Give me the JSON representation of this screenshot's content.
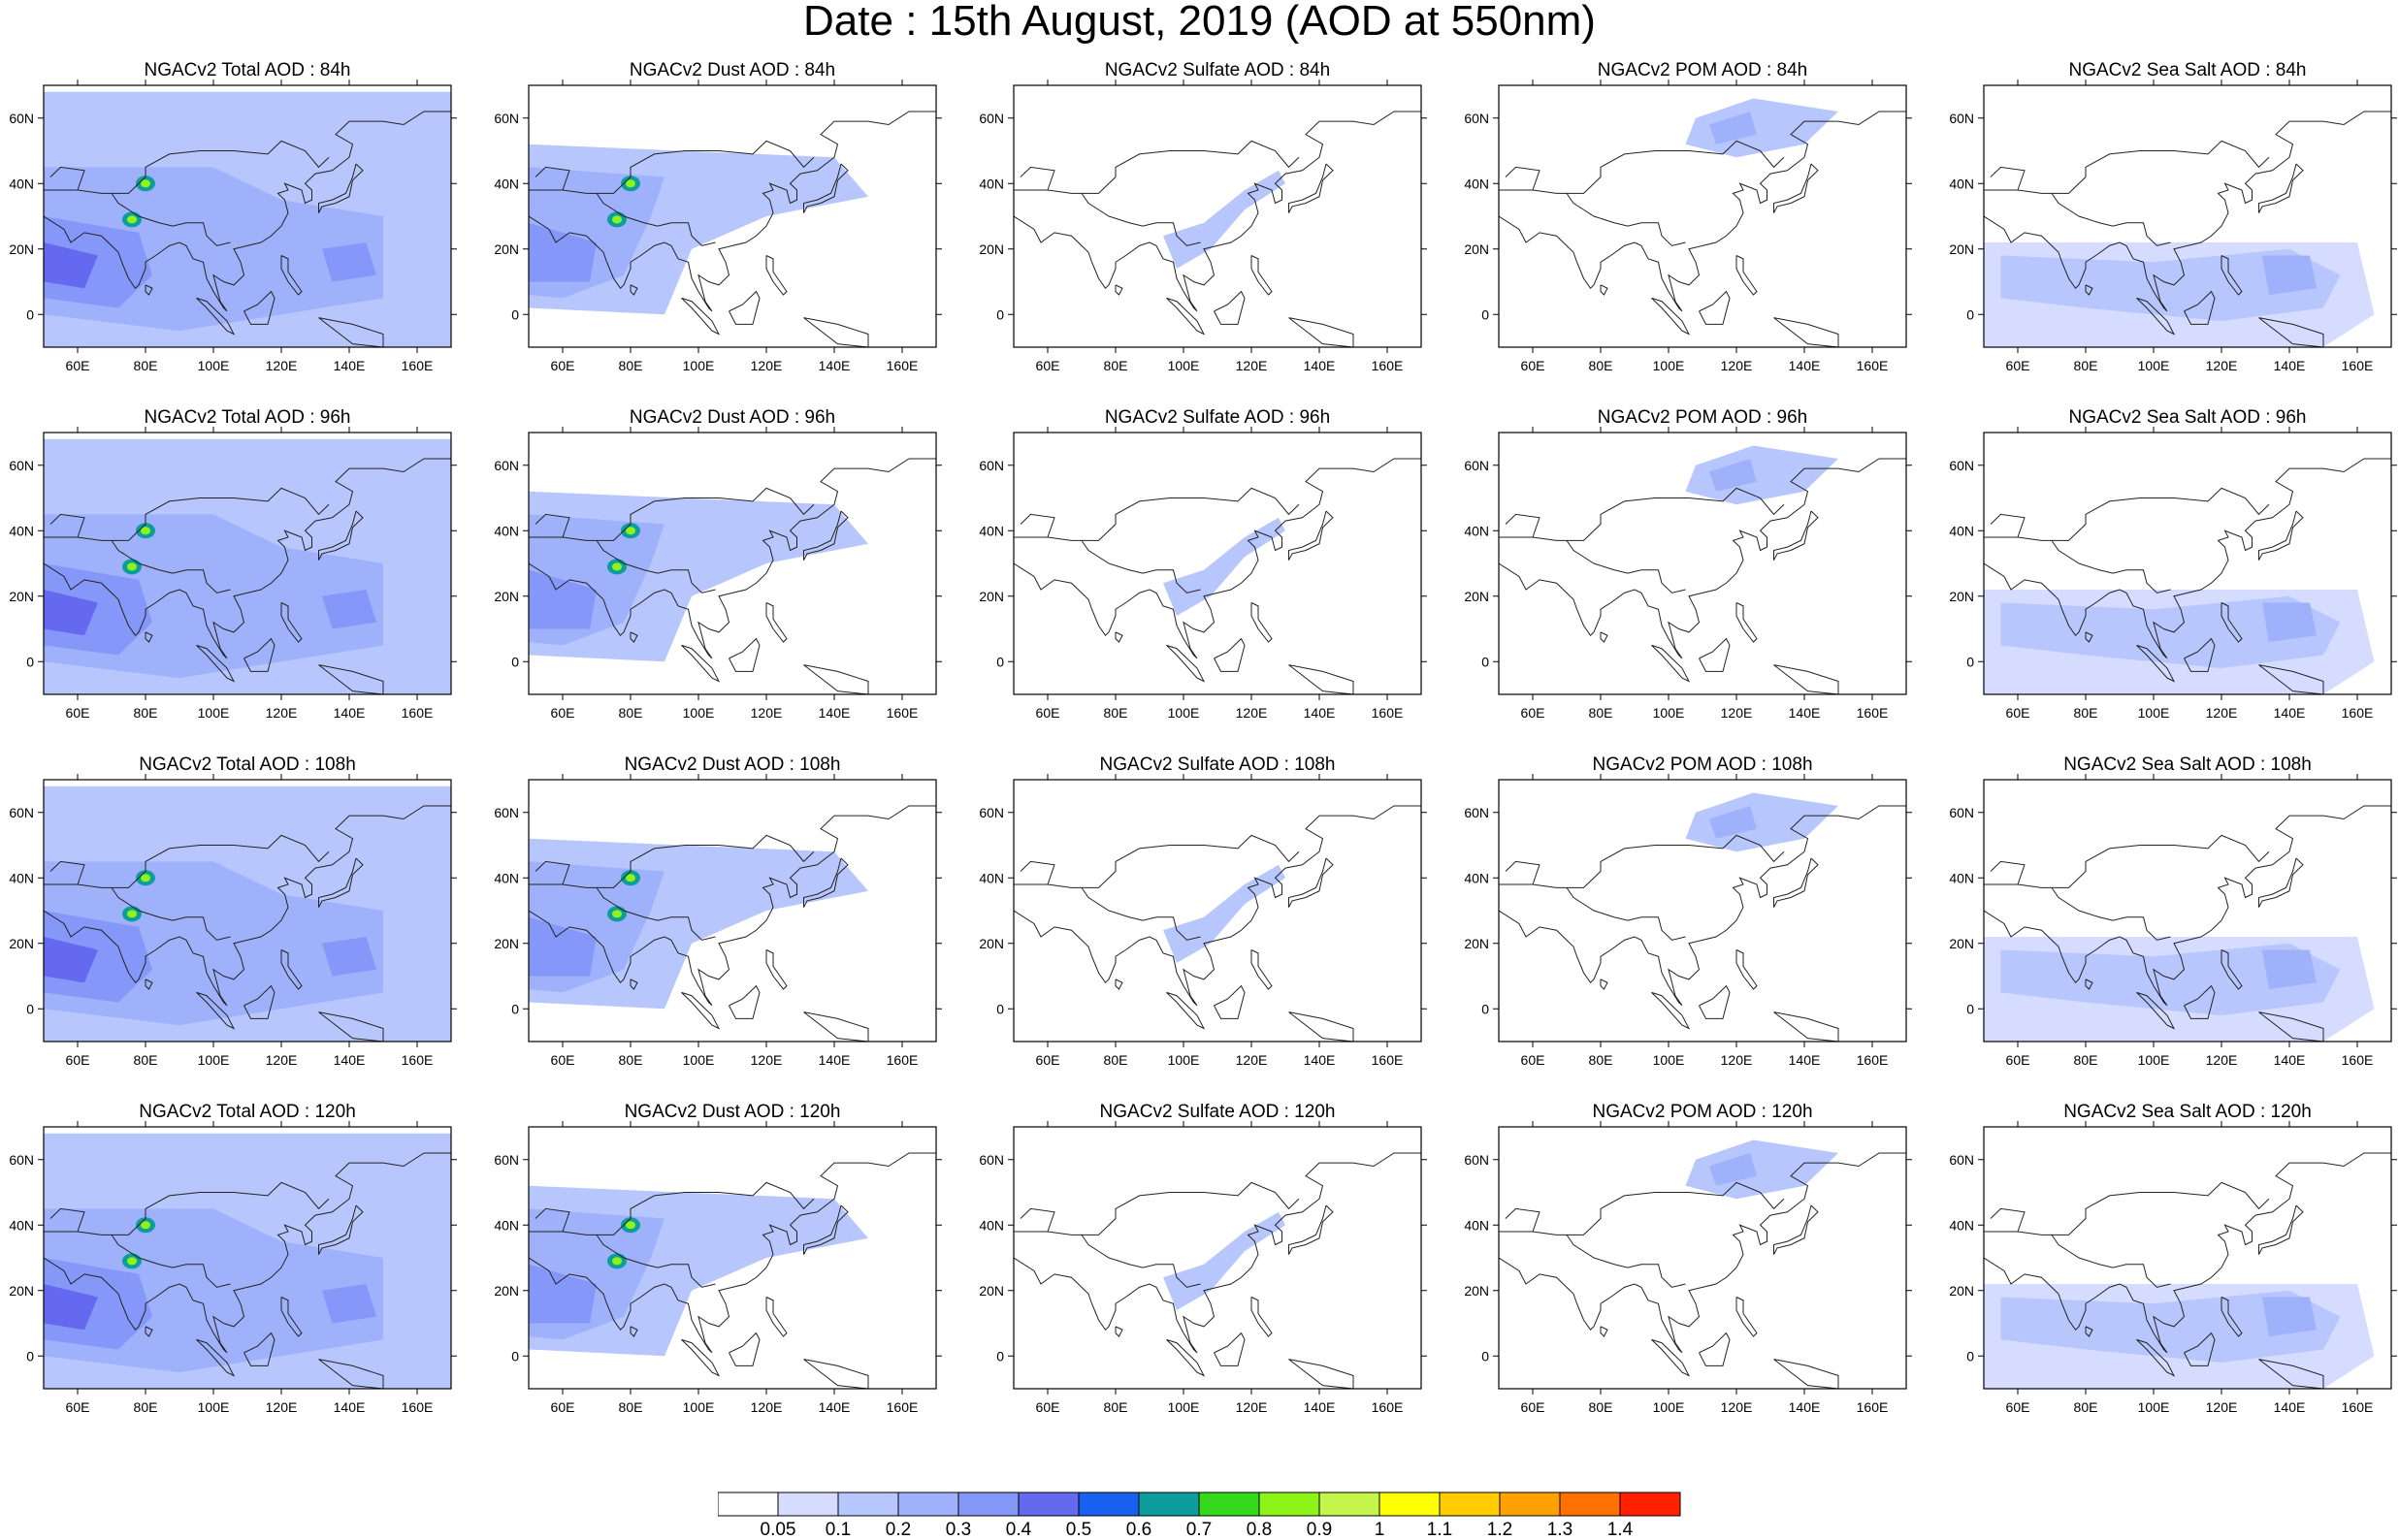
{
  "title": "Date : 15th August, 2019 (AOD at 550nm)",
  "axes": {
    "lat_ticks": [
      "60N",
      "40N",
      "20N",
      "0"
    ],
    "lon_ticks": [
      "60E",
      "80E",
      "100E",
      "120E",
      "140E",
      "160E"
    ],
    "lat_range": [
      -10,
      70
    ],
    "lon_range": [
      50,
      170
    ]
  },
  "colorbar": {
    "labels": [
      "0.05",
      "0.1",
      "0.2",
      "0.3",
      "0.4",
      "0.5",
      "0.6",
      "0.7",
      "0.8",
      "0.9",
      "1",
      "1.1",
      "1.2",
      "1.3",
      "1.4"
    ],
    "colors": [
      "#ffffff",
      "#d6dcff",
      "#b7c6fc",
      "#9fb1fb",
      "#8597f8",
      "#6569f0",
      "#1860f0",
      "#0e9d9d",
      "#35d91b",
      "#8ef418",
      "#c5f54a",
      "#ffff00",
      "#ffcc00",
      "#ffa200",
      "#ff7000",
      "#ff2000"
    ]
  },
  "panels": [
    {
      "title": "NGACv2 Total AOD : 84h",
      "species": "total"
    },
    {
      "title": "NGACv2 Dust AOD : 84h",
      "species": "dust"
    },
    {
      "title": "NGACv2 Sulfate AOD : 84h",
      "species": "sulfate"
    },
    {
      "title": "NGACv2 POM AOD : 84h",
      "species": "pom"
    },
    {
      "title": "NGACv2 Sea Salt AOD : 84h",
      "species": "seasalt"
    },
    {
      "title": "NGACv2 Total AOD : 96h",
      "species": "total"
    },
    {
      "title": "NGACv2 Dust AOD : 96h",
      "species": "dust"
    },
    {
      "title": "NGACv2 Sulfate AOD : 96h",
      "species": "sulfate"
    },
    {
      "title": "NGACv2 POM AOD : 96h",
      "species": "pom"
    },
    {
      "title": "NGACv2 Sea Salt AOD : 96h",
      "species": "seasalt"
    },
    {
      "title": "NGACv2 Total AOD : 108h",
      "species": "total"
    },
    {
      "title": "NGACv2 Dust AOD : 108h",
      "species": "dust"
    },
    {
      "title": "NGACv2 Sulfate AOD : 108h",
      "species": "sulfate"
    },
    {
      "title": "NGACv2 POM AOD : 108h",
      "species": "pom"
    },
    {
      "title": "NGACv2 Sea Salt AOD : 108h",
      "species": "seasalt"
    },
    {
      "title": "NGACv2 Total AOD : 120h",
      "species": "total"
    },
    {
      "title": "NGACv2 Dust AOD : 120h",
      "species": "dust"
    },
    {
      "title": "NGACv2 Sulfate AOD : 120h",
      "species": "sulfate"
    },
    {
      "title": "NGACv2 POM AOD : 120h",
      "species": "pom"
    },
    {
      "title": "NGACv2 Sea Salt  AOD : 120h",
      "species": "seasalt"
    }
  ]
}
